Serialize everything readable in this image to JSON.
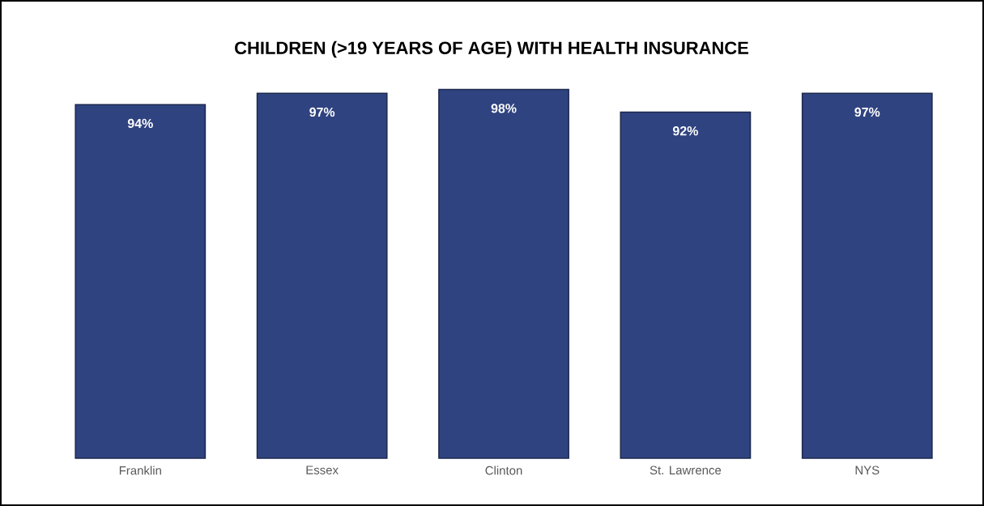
{
  "chart_data": {
    "type": "bar",
    "title": "CHILDREN (>19 YEARS OF AGE) WITH HEALTH INSURANCE",
    "categories": [
      "Franklin",
      "Essex",
      "Clinton",
      "St. Lawrence",
      "NYS"
    ],
    "values": [
      94,
      97,
      98,
      92,
      97
    ],
    "value_labels": [
      "94%",
      "97%",
      "98%",
      "92%",
      "97%"
    ],
    "color": "#2f4380"
  }
}
